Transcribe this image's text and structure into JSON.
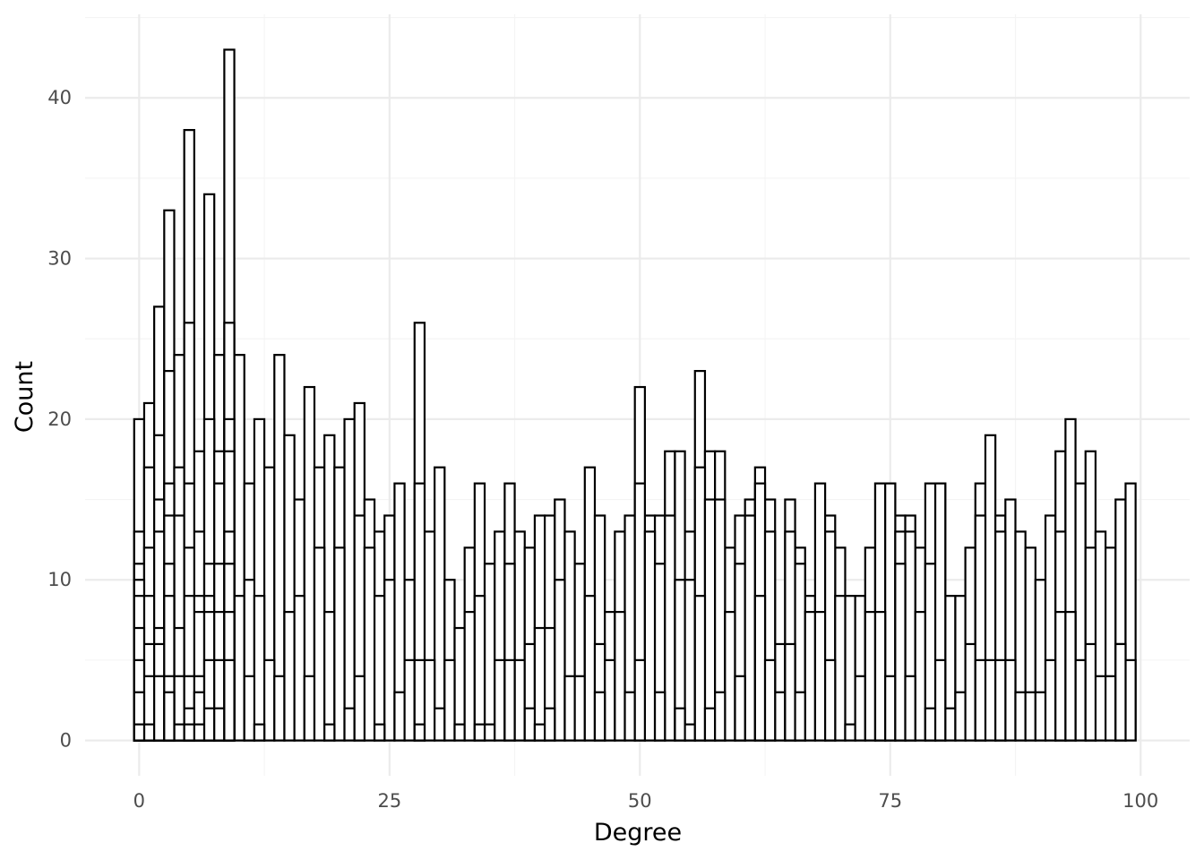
{
  "chart_data": {
    "type": "bar",
    "subtype": "histogram",
    "title": "",
    "xlabel": "Degree",
    "ylabel": "Count",
    "xlim": [
      -5.4,
      104.9
    ],
    "ylim": [
      -2.2,
      45.2
    ],
    "x_ticks": [
      0,
      25,
      50,
      75,
      100
    ],
    "x_tick_labels": [
      "0",
      "25",
      "50",
      "75",
      "100"
    ],
    "y_ticks": [
      0,
      10,
      20,
      30,
      40
    ],
    "y_tick_labels": [
      "0",
      "10",
      "20",
      "30",
      "40"
    ],
    "grid": true,
    "legend": "none",
    "bar_width": 1,
    "bar_fill": "#ffffff",
    "bar_stroke": "#000000",
    "x": [
      0,
      1,
      2,
      3,
      4,
      5,
      6,
      7,
      8,
      9,
      10,
      11,
      12,
      13,
      14,
      15,
      16,
      17,
      18,
      19,
      20,
      21,
      22,
      23,
      24,
      25,
      26,
      27,
      28,
      29,
      30,
      31,
      32,
      33,
      34,
      35,
      36,
      37,
      38,
      39,
      40,
      41,
      42,
      43,
      44,
      45,
      46,
      47,
      48,
      49,
      50,
      51,
      52,
      53,
      54,
      55,
      56,
      57,
      58,
      59,
      60,
      61,
      62,
      63,
      64,
      65,
      66,
      67,
      68,
      69,
      70,
      71,
      72,
      73,
      74,
      75,
      76,
      77,
      78,
      79,
      80,
      81,
      82,
      83,
      84,
      85,
      86,
      87,
      88,
      89,
      90,
      91,
      92,
      93,
      94,
      95,
      96,
      97,
      98,
      99
    ],
    "series": [
      {
        "values": [
          20,
          21,
          27,
          33,
          24,
          38,
          18,
          34,
          24,
          43,
          24,
          16,
          20,
          17,
          24,
          19,
          15,
          22,
          17,
          19,
          17,
          20,
          21,
          15,
          13,
          14,
          16,
          10,
          26,
          13,
          17,
          10,
          7,
          12,
          16,
          11,
          13,
          16,
          13,
          12,
          14,
          14,
          15,
          13,
          11,
          17,
          14,
          8,
          13,
          14,
          22,
          14,
          14,
          18,
          18,
          13,
          23,
          18,
          18,
          12,
          14,
          15,
          17,
          15,
          6,
          15,
          12,
          9,
          16,
          14,
          12,
          9,
          9,
          12,
          16,
          16,
          14,
          14,
          12,
          16,
          16,
          9,
          9,
          12,
          16,
          19,
          14,
          15,
          13,
          12,
          10,
          14,
          18,
          20,
          16,
          18,
          13,
          12,
          15,
          16
        ]
      },
      {
        "values": [
          13,
          17,
          19,
          23,
          17,
          26,
          13,
          20,
          18,
          26,
          9,
          10,
          9,
          5,
          4,
          8,
          9,
          4,
          12,
          8,
          12,
          2,
          14,
          12,
          9,
          10,
          3,
          5,
          16,
          5,
          2,
          5,
          1,
          8,
          9,
          1,
          5,
          11,
          5,
          6,
          7,
          7,
          10,
          4,
          4,
          9,
          6,
          5,
          8,
          3,
          16,
          13,
          11,
          14,
          10,
          10,
          17,
          15,
          15,
          8,
          11,
          14,
          16,
          13,
          3,
          13,
          11,
          8,
          8,
          13,
          9,
          1,
          4,
          8,
          16,
          16,
          13,
          13,
          8,
          11,
          16,
          2,
          3,
          6,
          14,
          5,
          13,
          5,
          3,
          3,
          3,
          5,
          13,
          8,
          5,
          12,
          4,
          4,
          6,
          5
        ]
      },
      {
        "values": [
          11,
          12,
          15,
          16,
          14,
          16,
          9,
          11,
          16,
          20,
          0,
          4,
          1,
          0,
          0,
          0,
          0,
          0,
          0,
          1,
          0,
          0,
          4,
          0,
          1,
          0,
          0,
          0,
          5,
          0,
          0,
          0,
          0,
          0,
          1,
          0,
          0,
          5,
          0,
          2,
          1,
          2,
          0,
          0,
          0,
          0,
          3,
          0,
          0,
          0,
          5,
          0,
          3,
          0,
          2,
          1,
          9,
          2,
          3,
          0,
          4,
          0,
          9,
          5,
          0,
          6,
          3,
          0,
          0,
          5,
          0,
          0,
          0,
          0,
          8,
          4,
          11,
          4,
          0,
          2,
          5,
          0,
          0,
          0,
          5,
          0,
          5,
          0,
          0,
          0,
          0,
          0,
          8,
          8,
          0,
          6,
          0,
          0,
          6,
          0
        ]
      },
      {
        "values": [
          10,
          9,
          13,
          14,
          7,
          12,
          8,
          9,
          11,
          18,
          0,
          0,
          0,
          0,
          0,
          0,
          0,
          0,
          0,
          0,
          0,
          0,
          0,
          0,
          0,
          0,
          0,
          0,
          1,
          0,
          0,
          0,
          0,
          0,
          0,
          0,
          0,
          0,
          0,
          0,
          0,
          0,
          0,
          0,
          0,
          0,
          0,
          0,
          0,
          0,
          0,
          0,
          0,
          0,
          0,
          0,
          0,
          0,
          0,
          0,
          0,
          0,
          0,
          0,
          0,
          0,
          0,
          0,
          0,
          0,
          0,
          0,
          0,
          0,
          0,
          0,
          0,
          0,
          0,
          0,
          0,
          0,
          0,
          0,
          0,
          0,
          0,
          0,
          0,
          0,
          0,
          0,
          0,
          0,
          0,
          0,
          0,
          0,
          0,
          0
        ]
      },
      {
        "values": [
          9,
          6,
          7,
          11,
          4,
          9,
          4,
          8,
          8,
          13,
          0,
          0,
          0,
          0,
          0,
          0,
          0,
          0,
          0,
          0,
          0,
          0,
          0,
          0,
          0,
          0,
          0,
          0,
          0,
          0,
          0,
          0,
          0,
          0,
          0,
          0,
          0,
          0,
          0,
          0,
          0,
          0,
          0,
          0,
          0,
          0,
          0,
          0,
          0,
          0,
          0,
          0,
          0,
          0,
          0,
          0,
          0,
          0,
          0,
          0,
          0,
          0,
          0,
          0,
          0,
          0,
          0,
          0,
          0,
          0,
          0,
          0,
          0,
          0,
          0,
          0,
          0,
          0,
          0,
          0,
          0,
          0,
          0,
          0,
          0,
          0,
          0,
          0,
          0,
          0,
          0,
          0,
          0,
          0,
          0,
          0,
          0,
          0,
          0,
          0
        ]
      },
      {
        "values": [
          7,
          4,
          6,
          9,
          1,
          4,
          3,
          5,
          5,
          11,
          0,
          0,
          0,
          0,
          0,
          0,
          0,
          0,
          0,
          0,
          0,
          0,
          0,
          0,
          0,
          0,
          0,
          0,
          0,
          0,
          0,
          0,
          0,
          0,
          0,
          0,
          0,
          0,
          0,
          0,
          0,
          0,
          0,
          0,
          0,
          0,
          0,
          0,
          0,
          0,
          0,
          0,
          0,
          0,
          0,
          0,
          0,
          0,
          0,
          0,
          0,
          0,
          0,
          0,
          0,
          0,
          0,
          0,
          0,
          0,
          0,
          0,
          0,
          0,
          0,
          0,
          0,
          0,
          0,
          0,
          0,
          0,
          0,
          0,
          0,
          0,
          0,
          0,
          0,
          0,
          0,
          0,
          0,
          0,
          0,
          0,
          0,
          0,
          0,
          0
        ]
      },
      {
        "values": [
          5,
          1,
          4,
          4,
          0,
          2,
          1,
          2,
          2,
          8,
          0,
          0,
          0,
          0,
          0,
          0,
          0,
          0,
          0,
          0,
          0,
          0,
          0,
          0,
          0,
          0,
          0,
          0,
          0,
          0,
          0,
          0,
          0,
          0,
          0,
          0,
          0,
          0,
          0,
          0,
          0,
          0,
          0,
          0,
          0,
          0,
          0,
          0,
          0,
          0,
          0,
          0,
          0,
          0,
          0,
          0,
          0,
          0,
          0,
          0,
          0,
          0,
          0,
          0,
          0,
          0,
          0,
          0,
          0,
          0,
          0,
          0,
          0,
          0,
          0,
          0,
          0,
          0,
          0,
          0,
          0,
          0,
          0,
          0,
          0,
          0,
          0,
          0,
          0,
          0,
          0,
          0,
          0,
          0,
          0,
          0,
          0,
          0,
          0,
          0
        ]
      },
      {
        "values": [
          3,
          0,
          0,
          3,
          0,
          1,
          0,
          0,
          0,
          5,
          0,
          0,
          0,
          0,
          0,
          0,
          0,
          0,
          0,
          0,
          0,
          0,
          0,
          0,
          0,
          0,
          0,
          0,
          0,
          0,
          0,
          0,
          0,
          0,
          0,
          0,
          0,
          0,
          0,
          0,
          0,
          0,
          0,
          0,
          0,
          0,
          0,
          0,
          0,
          0,
          0,
          0,
          0,
          0,
          0,
          0,
          0,
          0,
          0,
          0,
          0,
          0,
          0,
          0,
          0,
          0,
          0,
          0,
          0,
          0,
          0,
          0,
          0,
          0,
          0,
          0,
          0,
          0,
          0,
          0,
          0,
          0,
          0,
          0,
          0,
          0,
          0,
          0,
          0,
          0,
          0,
          0,
          0,
          0,
          0,
          0,
          0,
          0,
          0,
          0
        ]
      },
      {
        "values": [
          1,
          0,
          0,
          0,
          0,
          0,
          0,
          0,
          0,
          0,
          0,
          0,
          0,
          0,
          0,
          0,
          0,
          0,
          0,
          0,
          0,
          0,
          0,
          0,
          0,
          0,
          0,
          0,
          0,
          0,
          0,
          0,
          0,
          0,
          0,
          0,
          0,
          0,
          0,
          0,
          0,
          0,
          0,
          0,
          0,
          0,
          0,
          0,
          0,
          0,
          0,
          0,
          0,
          0,
          0,
          0,
          0,
          0,
          0,
          0,
          0,
          0,
          0,
          0,
          0,
          0,
          0,
          0,
          0,
          0,
          0,
          0,
          0,
          0,
          0,
          0,
          0,
          0,
          0,
          0,
          0,
          0,
          0,
          0,
          0,
          0,
          0,
          0,
          0,
          0,
          0,
          0,
          0,
          0,
          0,
          0,
          0,
          0,
          0,
          0
        ]
      }
    ]
  }
}
